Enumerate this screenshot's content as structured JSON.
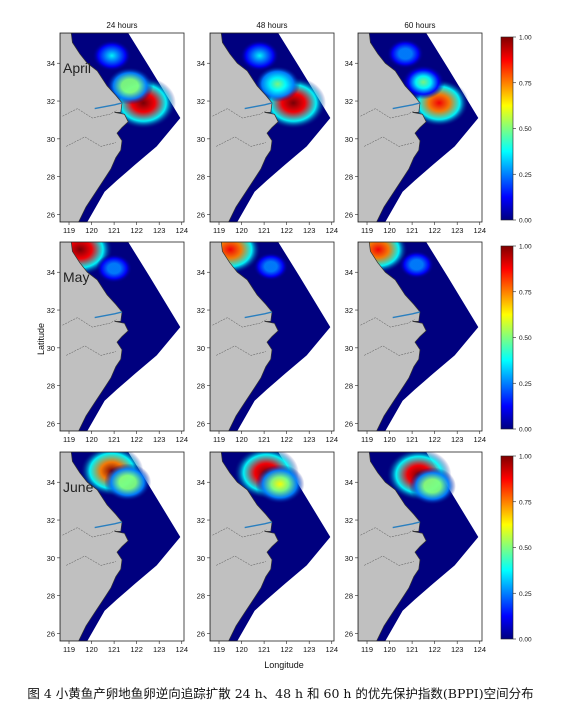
{
  "caption": "图 4 小黄鱼产卵地鱼卵逆向追踪扩散 24 h、48 h 和 60 h 的优先保护指数(BPPI)空间分布",
  "chart_data": {
    "type": "heatmap",
    "columns": [
      "24 hours",
      "48 hours",
      "60 hours"
    ],
    "rows": [
      "April",
      "May",
      "June"
    ],
    "xlabel": "Longitude",
    "ylabel": "Latitude",
    "xticks": [
      119,
      120,
      121,
      122,
      123,
      124
    ],
    "yticks": [
      26,
      28,
      30,
      32,
      34
    ],
    "xlim": [
      118.6,
      124.1
    ],
    "ylim": [
      25.6,
      35.6
    ],
    "colorbar": {
      "min": 0.0,
      "max": 1.0,
      "ticks": [
        "0.00",
        "0.25",
        "0.50",
        "0.75",
        "1.00"
      ]
    },
    "colormap": [
      "#00007f",
      "#0000ff",
      "#007fff",
      "#00ffff",
      "#7fff7f",
      "#ffff00",
      "#ff7f00",
      "#ff0000",
      "#7f0000"
    ],
    "land_color": "#c0c0c0",
    "hotspots": [
      [
        [
          {
            "lon": 122.3,
            "lat": 31.9,
            "value": 1.0
          },
          {
            "lon": 121.7,
            "lat": 32.8,
            "value": 0.55
          },
          {
            "lon": 120.9,
            "lat": 34.4,
            "value": 0.35
          }
        ],
        [
          {
            "lon": 122.3,
            "lat": 31.9,
            "value": 1.0
          },
          {
            "lon": 121.6,
            "lat": 32.9,
            "value": 0.5
          },
          {
            "lon": 120.8,
            "lat": 34.4,
            "value": 0.35
          }
        ],
        [
          {
            "lon": 122.2,
            "lat": 31.9,
            "value": 0.85
          },
          {
            "lon": 121.5,
            "lat": 33.0,
            "value": 0.45
          },
          {
            "lon": 120.7,
            "lat": 34.5,
            "value": 0.3
          }
        ]
      ],
      [
        [
          {
            "lon": 119.5,
            "lat": 35.2,
            "value": 1.0
          },
          {
            "lon": 121.0,
            "lat": 34.2,
            "value": 0.28
          }
        ],
        [
          {
            "lon": 119.5,
            "lat": 35.2,
            "value": 0.9
          },
          {
            "lon": 121.3,
            "lat": 34.3,
            "value": 0.25
          }
        ],
        [
          {
            "lon": 119.5,
            "lat": 35.2,
            "value": 0.85
          },
          {
            "lon": 121.2,
            "lat": 34.4,
            "value": 0.25
          }
        ]
      ],
      [
        [
          {
            "lon": 120.9,
            "lat": 34.6,
            "value": 0.95
          },
          {
            "lon": 121.6,
            "lat": 34.0,
            "value": 0.55
          }
        ],
        [
          {
            "lon": 121.1,
            "lat": 34.5,
            "value": 1.0
          },
          {
            "lon": 121.7,
            "lat": 33.9,
            "value": 0.6
          }
        ],
        [
          {
            "lon": 121.3,
            "lat": 34.4,
            "value": 1.0
          },
          {
            "lon": 121.9,
            "lat": 33.8,
            "value": 0.55
          }
        ]
      ]
    ]
  }
}
